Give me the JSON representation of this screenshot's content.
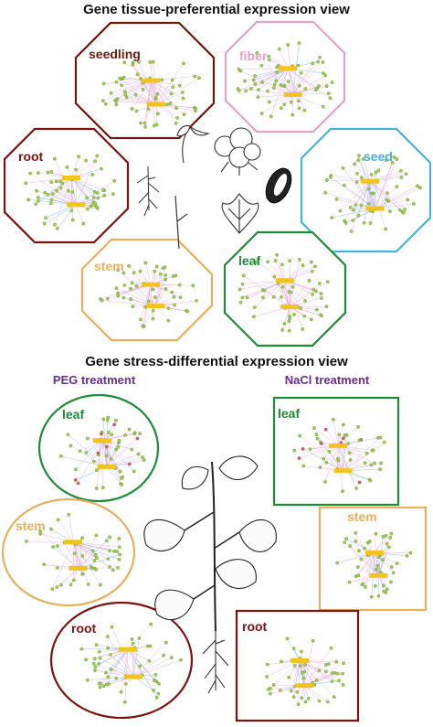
{
  "titles": {
    "tissue_view": "Gene tissue-preferential expression view",
    "stress_view": "Gene stress-differential expression view"
  },
  "treatments": {
    "peg": "PEG treatment",
    "nacl": "NaCl treatment"
  },
  "tissue_panels": {
    "seedling": "seedling",
    "fiber": "fiber",
    "root": "root",
    "seed": "seed",
    "stem": "stem",
    "leaf": "leaf"
  },
  "peg_panels": {
    "leaf": "leaf",
    "stem": "stem",
    "root": "root"
  },
  "nacl_panels": {
    "leaf": "leaf",
    "stem": "stem",
    "root": "root"
  },
  "colors": {
    "seedling": "#6b1a0c",
    "fiber": "#e3a3c2",
    "root": "#7b1212",
    "seed": "#49b2d8",
    "stem": "#e8b05e",
    "leaf": "#1f8a3a",
    "treatment": "#6a2c8c",
    "node": "#9ccc55",
    "hub": "#f0c419",
    "edge_pink": "#e7a9d8",
    "edge_blue": "#7fb6e3",
    "node_red": "#e2506c"
  },
  "icons": [
    "cotton-boll-icon",
    "seedling-icon",
    "cotton-seed-icon",
    "cotton-leaf-icon",
    "root-icon",
    "stem-icon",
    "cotton-plant-icon"
  ]
}
